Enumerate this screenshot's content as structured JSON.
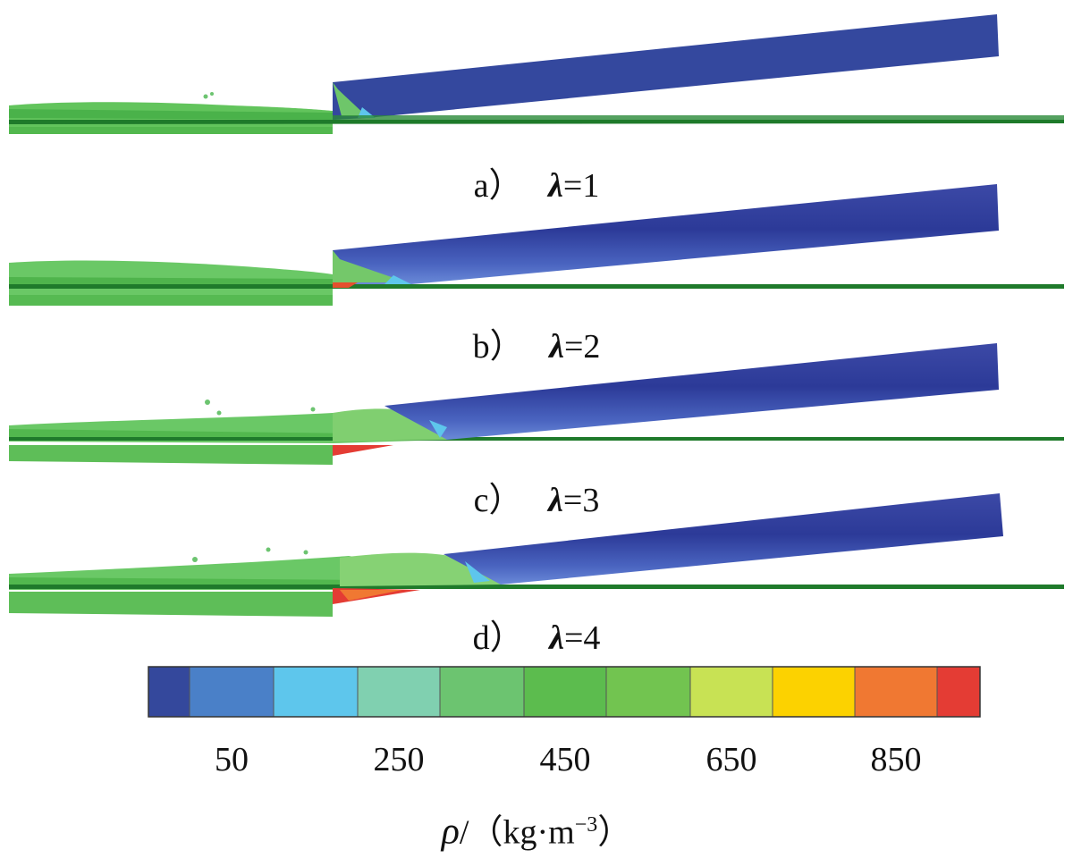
{
  "panels": [
    {
      "letter": "a）",
      "symbol": "λ",
      "value": "=1"
    },
    {
      "letter": "b）",
      "symbol": "λ",
      "value": "=2"
    },
    {
      "letter": "c）",
      "symbol": "λ",
      "value": "=3"
    },
    {
      "letter": "d）",
      "symbol": "λ",
      "value": "=4"
    }
  ],
  "colorbar": {
    "colors": [
      "#34489c",
      "#4a80c8",
      "#5ec6ec",
      "#80d0b0",
      "#6cc470",
      "#5cbc4e",
      "#72c450",
      "#c8e254",
      "#fcd200",
      "#f07832",
      "#e43c34"
    ],
    "ticks": [
      "50",
      "250",
      "450",
      "650",
      "850"
    ],
    "tick_positions": [
      2,
      4,
      6,
      8,
      10
    ],
    "unit_symbol": "ρ",
    "unit_prefix": "/（kg·m",
    "unit_exp": "−3",
    "unit_suffix": "）"
  }
}
